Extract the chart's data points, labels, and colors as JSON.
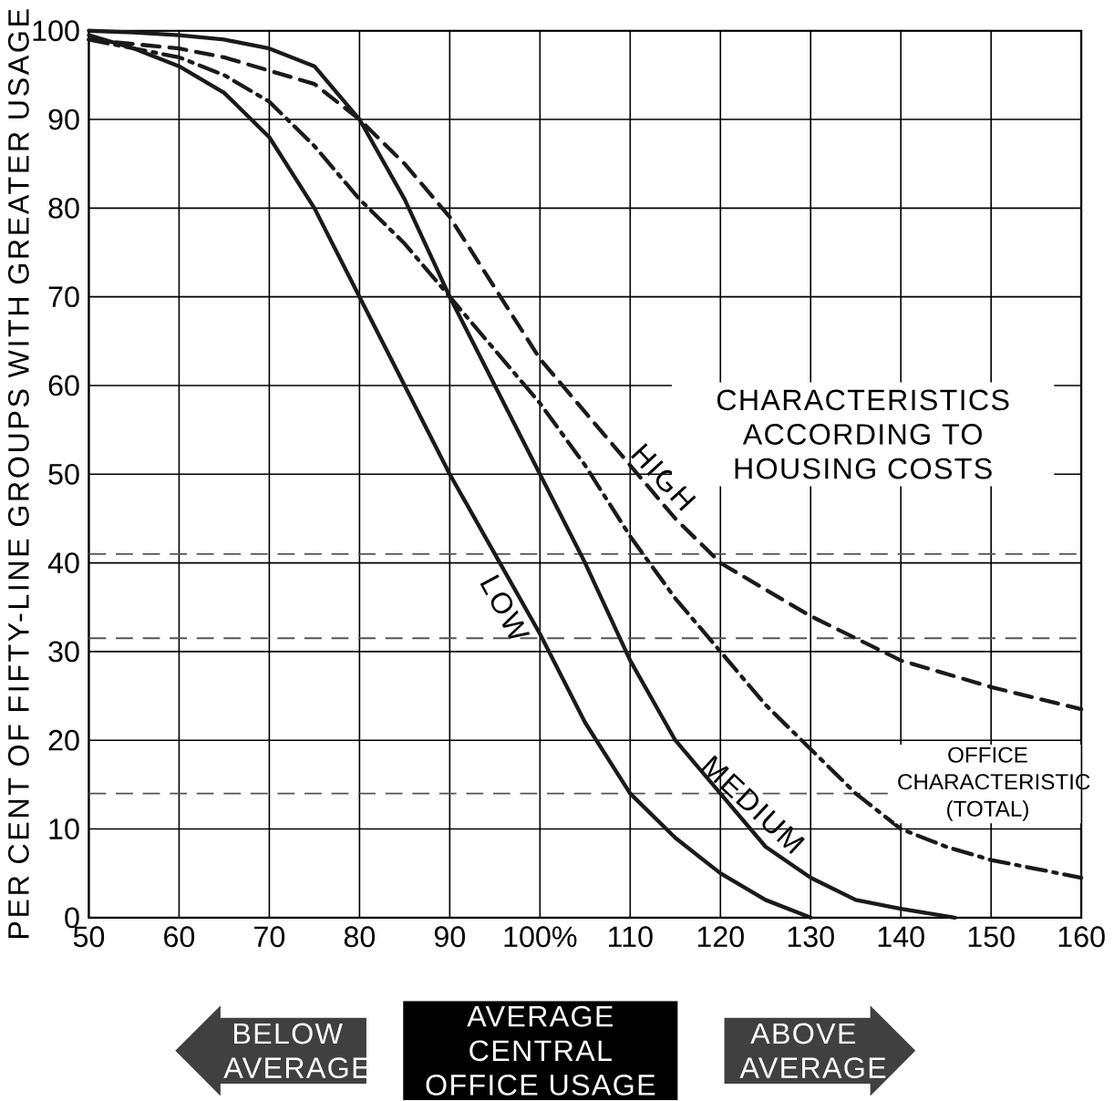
{
  "chart_data": {
    "type": "line",
    "ylabel": "PER CENT OF FIFTY-LINE GROUPS WITH GREATER USAGE",
    "xlim": [
      50,
      160
    ],
    "ylim": [
      0,
      100
    ],
    "xticks": [
      50,
      60,
      70,
      80,
      90,
      {
        "value": 100,
        "label": "100%"
      },
      110,
      120,
      130,
      140,
      150,
      160
    ],
    "yticks": [
      0,
      10,
      20,
      30,
      40,
      50,
      60,
      70,
      80,
      90,
      100
    ],
    "grid": true,
    "legend": false,
    "marker": "none",
    "series": [
      {
        "name": "OFFICE CHARACTERISTIC (TOTAL)",
        "color": "#1a1a1a",
        "line_style": "dashdot",
        "x": [
          50,
          60,
          65,
          70,
          75,
          80,
          85,
          90,
          95,
          100,
          105,
          110,
          115,
          120,
          125,
          130,
          135,
          140,
          145,
          150,
          155,
          160
        ],
        "values": [
          99,
          97,
          95,
          92,
          87,
          81,
          76,
          70,
          64,
          58,
          51,
          43,
          36,
          30,
          24,
          19,
          14,
          10,
          8,
          6.5,
          5.5,
          4.5
        ]
      },
      {
        "name": "HIGH",
        "color": "#1a1a1a",
        "line_style": "dashed",
        "x": [
          50,
          60,
          65,
          70,
          75,
          80,
          85,
          90,
          95,
          100,
          105,
          110,
          115,
          120,
          130,
          140,
          150,
          160
        ],
        "values": [
          99,
          98,
          97,
          95.5,
          94,
          90,
          85,
          79,
          71,
          63,
          57,
          51,
          45,
          40,
          34,
          29,
          26,
          23.5
        ]
      },
      {
        "name": "MEDIUM",
        "color": "#1a1a1a",
        "line_style": "solid",
        "x": [
          50,
          55,
          60,
          65,
          70,
          75,
          80,
          85,
          90,
          95,
          100,
          105,
          110,
          115,
          120,
          125,
          130,
          135,
          140,
          146
        ],
        "values": [
          100,
          99.8,
          99.5,
          99,
          98,
          96,
          90,
          81,
          70,
          60,
          50,
          40,
          29,
          20,
          14,
          8,
          4.5,
          2,
          1,
          0
        ]
      },
      {
        "name": "LOW",
        "color": "#1a1a1a",
        "line_style": "solid",
        "x": [
          50,
          55,
          60,
          65,
          70,
          75,
          80,
          85,
          90,
          95,
          100,
          105,
          110,
          115,
          120,
          125,
          130
        ],
        "values": [
          99.5,
          98,
          96,
          93,
          88,
          80,
          70,
          60,
          50,
          41,
          32,
          22,
          14,
          9,
          5,
          2,
          0
        ]
      }
    ],
    "ref_lines": [
      {
        "axis": "y",
        "value": 41,
        "color": "#555555",
        "line_style": "dashed"
      },
      {
        "axis": "y",
        "value": 31.5,
        "color": "#555555",
        "line_style": "dashed"
      },
      {
        "axis": "y",
        "value": 14,
        "color": "#555555",
        "line_style": "dashed"
      }
    ],
    "annotations": [
      "CHARACTERISTICS ACCORDING TO HOUSING COSTS",
      "BELOW AVERAGE",
      "AVERAGE CENTRAL OFFICE USAGE",
      "ABOVE AVERAGE"
    ]
  }
}
